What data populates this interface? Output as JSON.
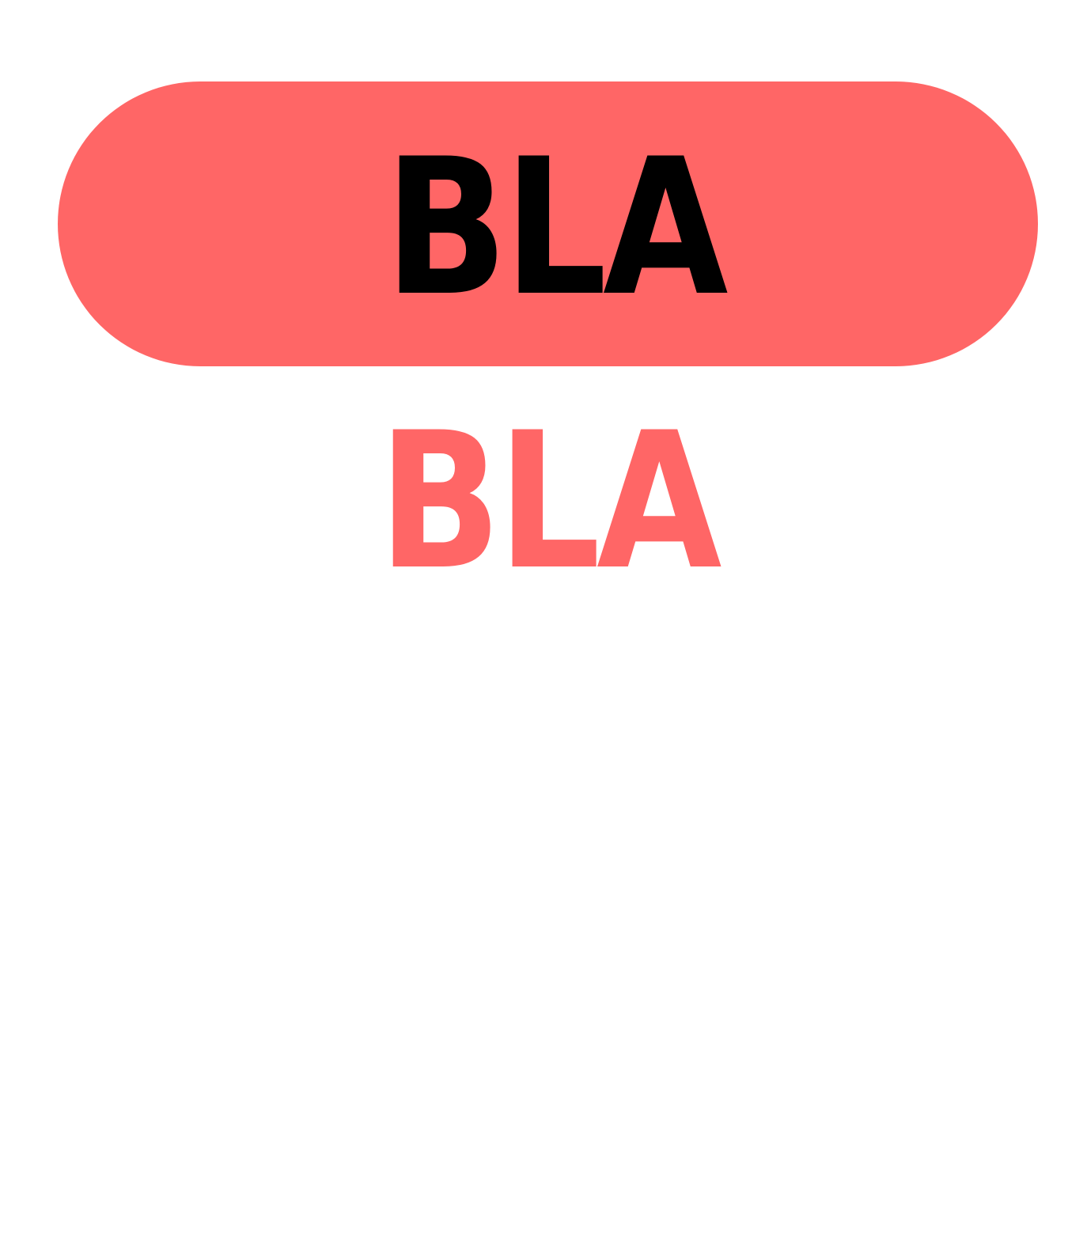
{
  "button": {
    "label": "BLA",
    "background_color": "#ff6666",
    "text_color": "#000000"
  },
  "text": {
    "label": "BLA",
    "text_color": "#ff6666"
  }
}
